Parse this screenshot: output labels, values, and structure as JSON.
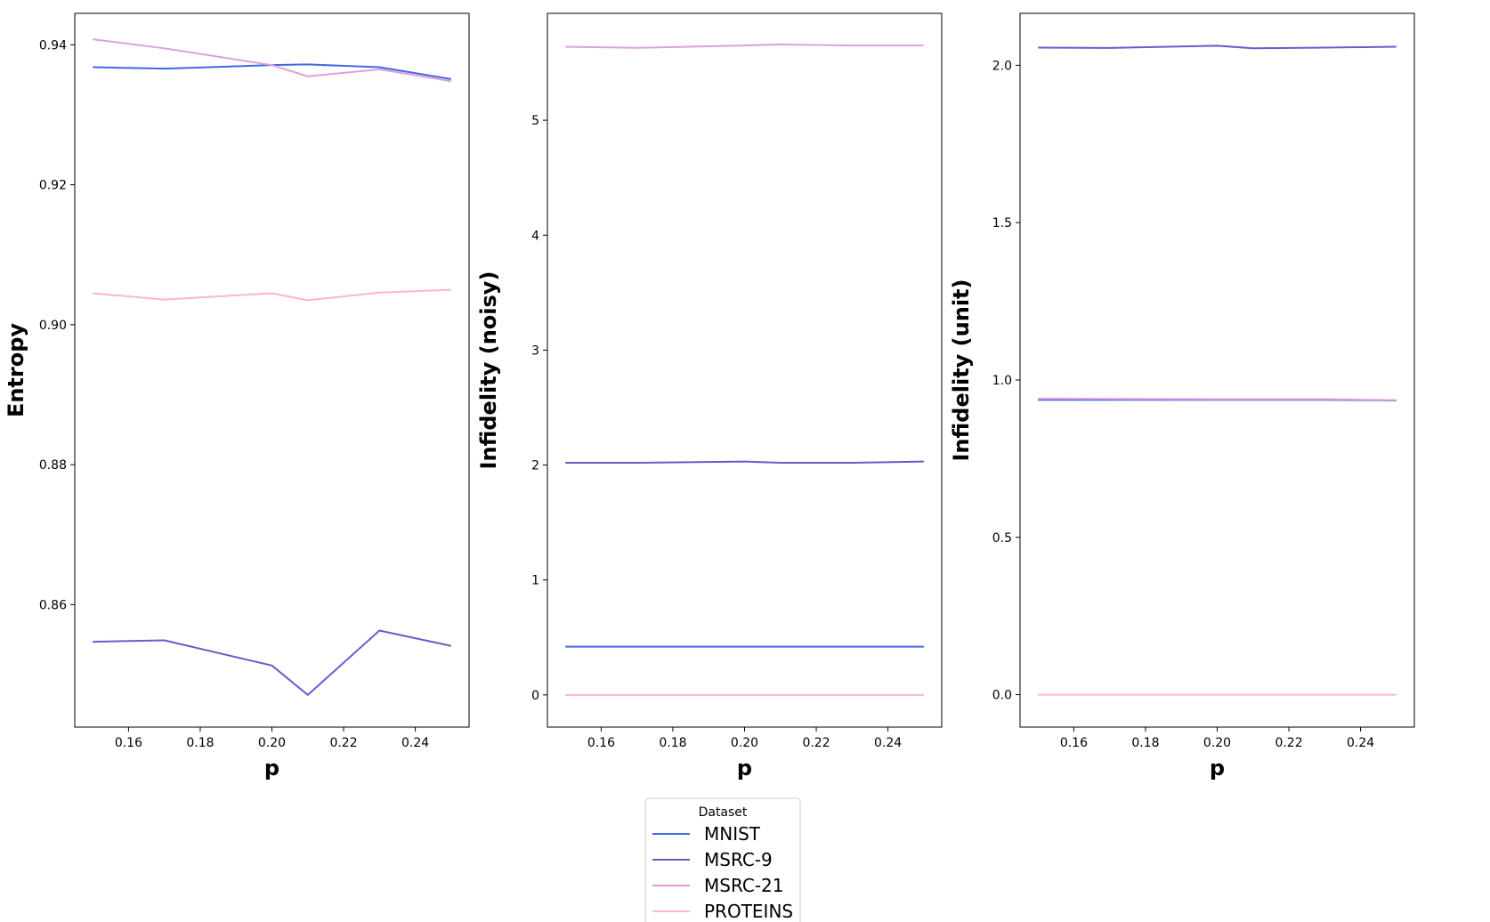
{
  "chart_data": [
    {
      "type": "line",
      "xlabel": "p",
      "ylabel": "Entropy",
      "x": [
        0.15,
        0.17,
        0.2,
        0.21,
        0.23,
        0.25
      ],
      "xlim": [
        0.145,
        0.255
      ],
      "ylim": [
        0.8425,
        0.9445
      ],
      "xticks": [
        "0.16",
        "0.18",
        "0.20",
        "0.22",
        "0.24"
      ],
      "yticks": [
        "0.86",
        "0.88",
        "0.90",
        "0.92",
        "0.94"
      ],
      "grid": false,
      "series": [
        {
          "name": "MNIST",
          "color": "#4169e1",
          "values": [
            0.9368,
            0.9366,
            0.9371,
            0.9372,
            0.9368,
            0.9351
          ]
        },
        {
          "name": "MSRC-9",
          "color": "#6a5acd",
          "values": [
            0.8547,
            0.8549,
            0.8513,
            0.8471,
            0.8563,
            0.8541
          ]
        },
        {
          "name": "MSRC-21",
          "color": "#dda0dd",
          "values": [
            0.9408,
            0.9395,
            0.9371,
            0.9355,
            0.9365,
            0.9348
          ]
        },
        {
          "name": "PROTEINS",
          "color": "#ffb6c1",
          "values": [
            0.9045,
            0.9036,
            0.9045,
            0.9035,
            0.9046,
            0.905
          ]
        }
      ]
    },
    {
      "type": "line",
      "xlabel": "p",
      "ylabel": "Infidelity (noisy)",
      "x": [
        0.15,
        0.17,
        0.2,
        0.21,
        0.23,
        0.25
      ],
      "xlim": [
        0.145,
        0.255
      ],
      "ylim": [
        -0.28,
        5.93
      ],
      "xticks": [
        "0.16",
        "0.18",
        "0.20",
        "0.22",
        "0.24"
      ],
      "yticks": [
        "0",
        "1",
        "2",
        "3",
        "4",
        "5"
      ],
      "grid": false,
      "series": [
        {
          "name": "MNIST",
          "color": "#4169e1",
          "values": [
            0.42,
            0.42,
            0.42,
            0.42,
            0.42,
            0.42
          ]
        },
        {
          "name": "MSRC-9",
          "color": "#6a5acd",
          "values": [
            2.02,
            2.02,
            2.03,
            2.02,
            2.02,
            2.03
          ]
        },
        {
          "name": "MSRC-21",
          "color": "#dda0dd",
          "values": [
            5.64,
            5.63,
            5.65,
            5.66,
            5.65,
            5.65
          ]
        },
        {
          "name": "PROTEINS",
          "color": "#ffb6c1",
          "values": [
            0.0,
            0.0,
            0.0,
            0.0,
            0.0,
            0.0
          ]
        }
      ]
    },
    {
      "type": "line",
      "xlabel": "p",
      "ylabel": "Infidelity (unit)",
      "x": [
        0.15,
        0.17,
        0.2,
        0.21,
        0.23,
        0.25
      ],
      "xlim": [
        0.145,
        0.255
      ],
      "ylim": [
        -0.103,
        2.165
      ],
      "xticks": [
        "0.16",
        "0.18",
        "0.20",
        "0.22",
        "0.24"
      ],
      "yticks": [
        "0.0",
        "0.5",
        "1.0",
        "1.5",
        "2.0"
      ],
      "grid": false,
      "series": [
        {
          "name": "MNIST",
          "color": "#4169e1",
          "values": [
            0.937,
            0.937,
            0.937,
            0.937,
            0.937,
            0.935
          ]
        },
        {
          "name": "MSRC-9",
          "color": "#6a5acd",
          "values": [
            2.056,
            2.055,
            2.062,
            2.054,
            2.056,
            2.059
          ]
        },
        {
          "name": "MSRC-21",
          "color": "#dda0dd",
          "values": [
            0.941,
            0.94,
            0.939,
            0.939,
            0.939,
            0.936
          ]
        },
        {
          "name": "PROTEINS",
          "color": "#ffb6c1",
          "values": [
            0.0,
            0.0,
            0.0,
            0.0,
            0.0,
            0.0
          ]
        }
      ]
    }
  ],
  "legend": {
    "title": "Dataset",
    "placement": "bottom-center",
    "entries": [
      {
        "label": "MNIST",
        "color": "#4169e1"
      },
      {
        "label": "MSRC-9",
        "color": "#6a5acd"
      },
      {
        "label": "MSRC-21",
        "color": "#dda0dd"
      },
      {
        "label": "PROTEINS",
        "color": "#ffb6c1"
      }
    ]
  }
}
